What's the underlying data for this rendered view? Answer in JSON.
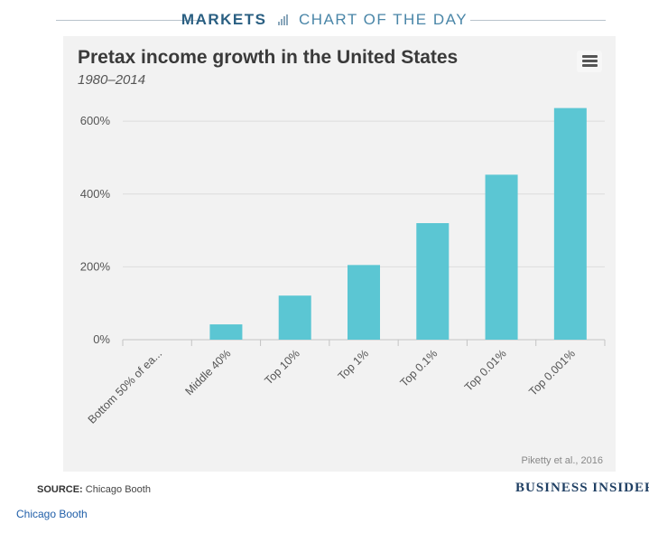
{
  "header": {
    "markets": "MARKETS",
    "chart_of_the_day": "CHART OF THE DAY"
  },
  "chart_data": {
    "type": "bar",
    "title": "Pretax income growth in the United States",
    "subtitle": "1980–2014",
    "categories": [
      "Bottom 50% of ea...",
      "Middle 40%",
      "Top 10%",
      "Top 1%",
      "Top 0.1%",
      "Top 0.01%",
      "Top 0.001%"
    ],
    "values": [
      0,
      42,
      121,
      205,
      320,
      453,
      636
    ],
    "ylim": [
      0,
      640
    ],
    "yticks": [
      0,
      200,
      400,
      600
    ],
    "ytick_labels": [
      "0%",
      "200%",
      "400%",
      "600%"
    ],
    "xlabel": "",
    "ylabel": "",
    "grid": true,
    "bar_color": "#5bc6d3",
    "credit": "Piketty et al., 2016"
  },
  "footer": {
    "source_label": "SOURCE:",
    "source_text": "Chicago Booth",
    "brand": "BUSINESS INSIDER",
    "link_text": "Chicago Booth"
  }
}
